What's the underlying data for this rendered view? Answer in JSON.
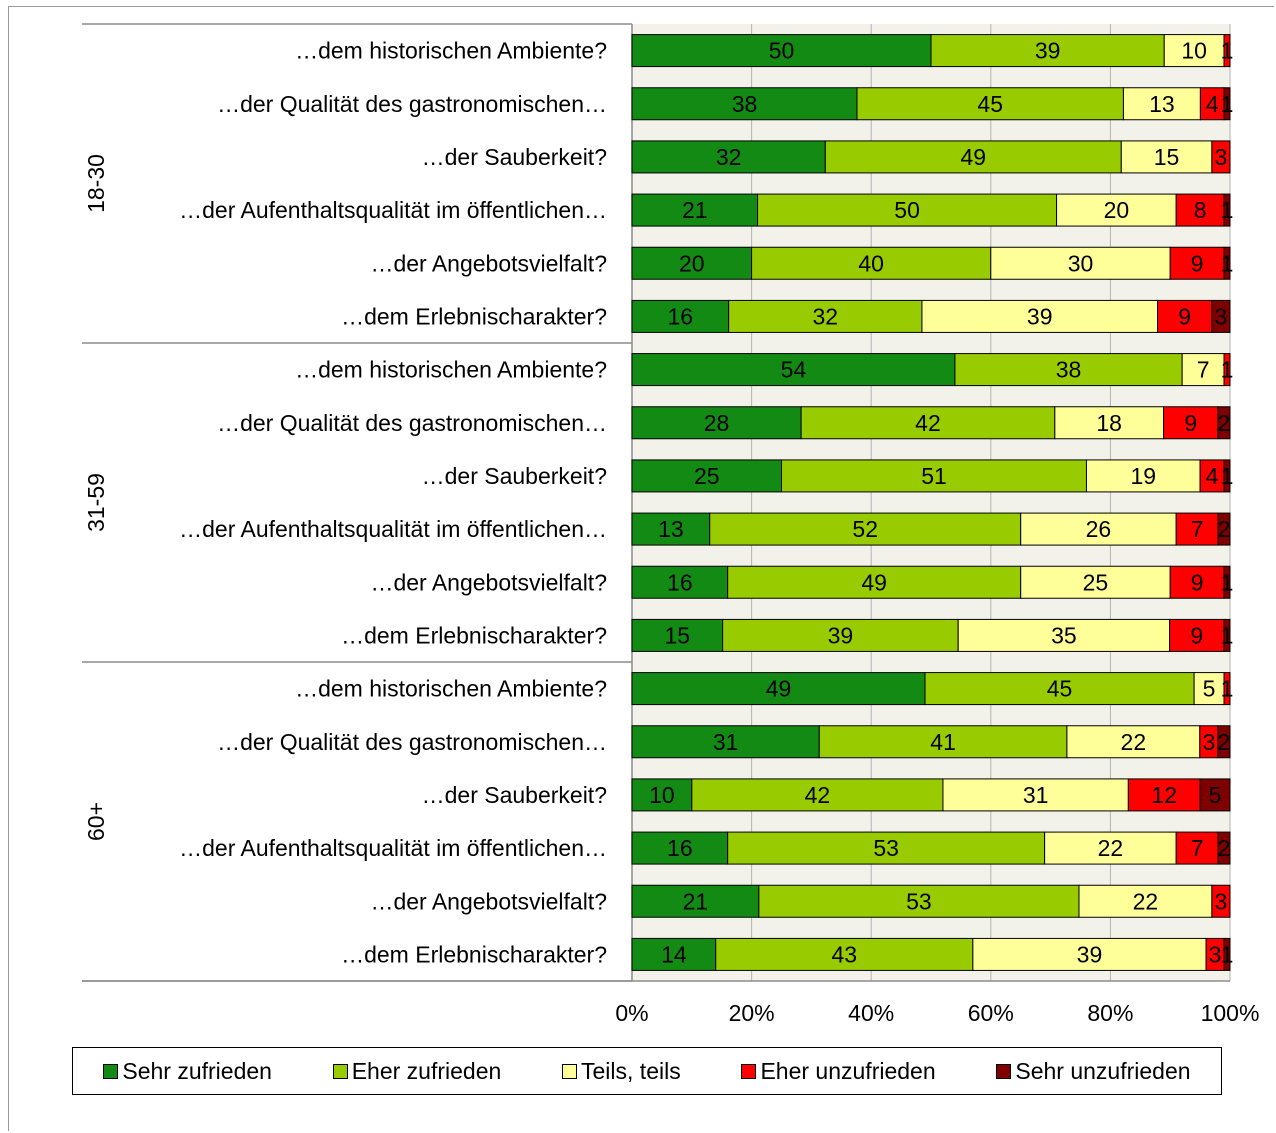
{
  "chart_data": {
    "type": "bar",
    "orientation": "horizontal",
    "stacked": "percent",
    "title": "",
    "xlabel": "",
    "ylabel": "",
    "xlim": [
      0,
      100
    ],
    "x_ticks": [
      "0%",
      "20%",
      "40%",
      "60%",
      "80%",
      "100%"
    ],
    "grid": true,
    "legend_position": "bottom",
    "series": [
      {
        "name": "Sehr zufrieden",
        "color": "#138a13"
      },
      {
        "name": "Eher zufrieden",
        "color": "#99cc00"
      },
      {
        "name": "Teils, teils",
        "color": "#ffff99"
      },
      {
        "name": "Eher unzufrieden",
        "color": "#ff0000"
      },
      {
        "name": "Sehr unzufrieden",
        "color": "#7f0000"
      }
    ],
    "groups": [
      {
        "label": "18-30",
        "items": [
          {
            "label": "…dem historischen Ambiente?",
            "values": [
              50,
              39,
              10,
              1,
              0
            ]
          },
          {
            "label": "…der Qualität des gastronomischen…",
            "values": [
              38,
              45,
              13,
              4,
              1
            ]
          },
          {
            "label": "…der Sauberkeit?",
            "values": [
              32,
              49,
              15,
              3,
              0
            ]
          },
          {
            "label": "…der Aufenthaltsqualität im öffentlichen…",
            "values": [
              21,
              50,
              20,
              8,
              1
            ]
          },
          {
            "label": "…der Angebotsvielfalt?",
            "values": [
              20,
              40,
              30,
              9,
              1
            ]
          },
          {
            "label": "…dem Erlebnischarakter?",
            "values": [
              16,
              32,
              39,
              9,
              3
            ]
          }
        ]
      },
      {
        "label": "31-59",
        "items": [
          {
            "label": "…dem historischen Ambiente?",
            "values": [
              54,
              38,
              7,
              1,
              0
            ]
          },
          {
            "label": "…der Qualität des gastronomischen…",
            "values": [
              28,
              42,
              18,
              9,
              2
            ]
          },
          {
            "label": "…der Sauberkeit?",
            "values": [
              25,
              51,
              19,
              4,
              1
            ]
          },
          {
            "label": "…der Aufenthaltsqualität im öffentlichen…",
            "values": [
              13,
              52,
              26,
              7,
              2
            ]
          },
          {
            "label": "…der Angebotsvielfalt?",
            "values": [
              16,
              49,
              25,
              9,
              1
            ]
          },
          {
            "label": "…dem Erlebnischarakter?",
            "values": [
              15,
              39,
              35,
              9,
              1
            ]
          }
        ]
      },
      {
        "label": "60+",
        "items": [
          {
            "label": "…dem historischen Ambiente?",
            "values": [
              49,
              45,
              5,
              1,
              0
            ]
          },
          {
            "label": "…der Qualität des gastronomischen…",
            "values": [
              31,
              41,
              22,
              3,
              2
            ]
          },
          {
            "label": "…der Sauberkeit?",
            "values": [
              10,
              42,
              31,
              12,
              5
            ]
          },
          {
            "label": "…der Aufenthaltsqualität im öffentlichen…",
            "values": [
              16,
              53,
              22,
              7,
              2
            ]
          },
          {
            "label": "…der Angebotsvielfalt?",
            "values": [
              21,
              53,
              22,
              3,
              0
            ]
          },
          {
            "label": "…dem Erlebnischarakter?",
            "values": [
              14,
              43,
              39,
              3,
              1
            ]
          }
        ]
      }
    ]
  }
}
